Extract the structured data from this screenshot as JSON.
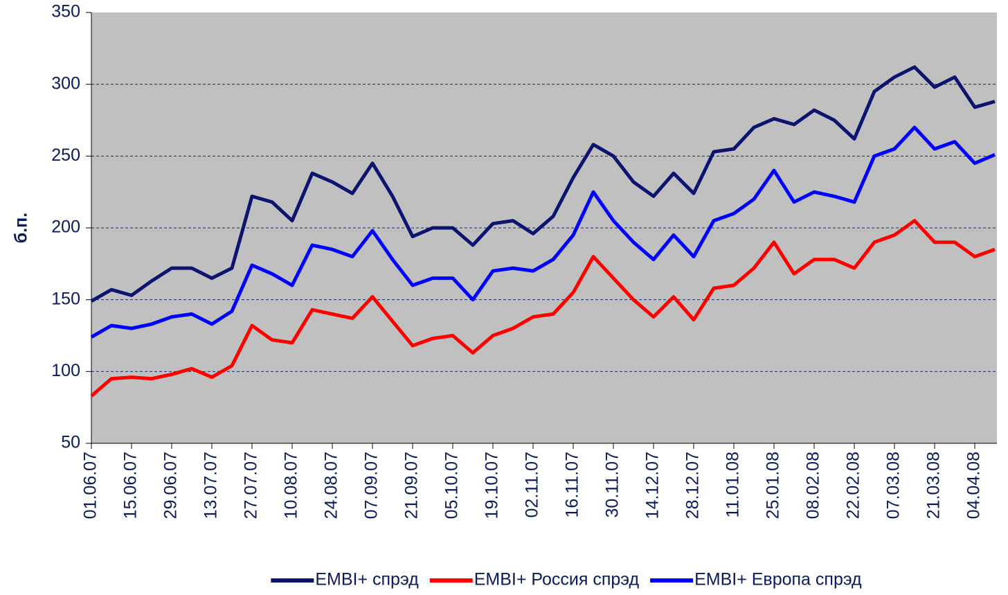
{
  "chart_data": {
    "type": "line",
    "y_label": "б.п.",
    "categories": [
      "01.06.07",
      null,
      "15.06.07",
      null,
      "29.06.07",
      null,
      "13.07.07",
      null,
      "27.07.07",
      null,
      "10.08.07",
      null,
      "24.08.07",
      null,
      "07.09.07",
      null,
      "21.09.07",
      null,
      "05.10.07",
      null,
      "19.10.07",
      null,
      "02.11.07",
      null,
      "16.11.07",
      null,
      "30.11.07",
      null,
      "14.12.07",
      null,
      "28.12.07",
      null,
      "11.01.08",
      null,
      "25.01.08",
      null,
      "08.02.08",
      null,
      "22.02.08",
      null,
      "07.03.08",
      null,
      "21.03.08",
      null,
      "04.04.08",
      null
    ],
    "series": [
      {
        "name": "EMBI+ спрэд",
        "color": "#0d1470",
        "values": [
          149,
          157,
          153,
          163,
          172,
          172,
          165,
          172,
          222,
          218,
          205,
          238,
          232,
          224,
          245,
          222,
          194,
          200,
          200,
          188,
          203,
          205,
          196,
          208,
          235,
          258,
          250,
          232,
          222,
          238,
          224,
          253,
          255,
          270,
          276,
          272,
          282,
          275,
          262,
          295,
          305,
          312,
          298,
          305,
          284,
          288
        ]
      },
      {
        "name": "EMBI+ Россия спрэд",
        "color": "#ff0000",
        "values": [
          83,
          95,
          96,
          95,
          98,
          102,
          96,
          104,
          132,
          122,
          120,
          143,
          140,
          137,
          152,
          135,
          118,
          123,
          125,
          113,
          125,
          130,
          138,
          140,
          155,
          180,
          165,
          150,
          138,
          152,
          136,
          158,
          160,
          172,
          190,
          168,
          178,
          178,
          172,
          190,
          195,
          205,
          190,
          190,
          180,
          185
        ]
      },
      {
        "name": "EMBI+ Европа спрэд",
        "color": "#0000ff",
        "values": [
          124,
          132,
          130,
          133,
          138,
          140,
          133,
          142,
          174,
          168,
          160,
          188,
          185,
          180,
          198,
          178,
          160,
          165,
          165,
          150,
          170,
          172,
          170,
          178,
          195,
          225,
          205,
          190,
          178,
          195,
          180,
          205,
          210,
          220,
          240,
          218,
          225,
          222,
          218,
          250,
          255,
          270,
          255,
          260,
          245,
          251
        ]
      }
    ],
    "ylim": [
      50,
      350
    ],
    "yticks": [
      50,
      100,
      150,
      200,
      250,
      300,
      350
    ],
    "grid": true,
    "plot_background": "#c0c0c0",
    "legend": "bottom"
  }
}
